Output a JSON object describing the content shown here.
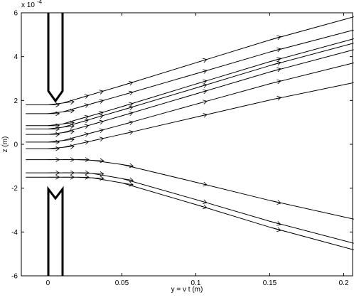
{
  "chart_data": {
    "type": "line",
    "x_label": "y = v t (m)",
    "y_label": "z (m)",
    "y_scale_label": {
      "base": "x 10",
      "power": "-4"
    },
    "x": [
      -0.015,
      0,
      0.01,
      0.02,
      0.03,
      0.05,
      0.1,
      0.15,
      0.206
    ],
    "xlim": [
      -0.018,
      0.206
    ],
    "ylim": [
      -6,
      6
    ],
    "xticks": [
      0,
      0.05,
      0.1,
      0.15,
      0.2
    ],
    "yticks": [
      -6,
      -4,
      -2,
      0,
      2,
      4,
      6
    ],
    "grid": false,
    "series": [
      {
        "color": "#000000",
        "values": [
          1.8,
          1.8,
          1.88,
          2.08,
          2.28,
          2.68,
          3.72,
          4.76,
          5.8
        ]
      },
      {
        "color": "#000000",
        "values": [
          1.4,
          1.4,
          1.48,
          1.67,
          1.86,
          2.24,
          3.22,
          4.21,
          5.2
        ]
      },
      {
        "color": "#000000",
        "values": [
          0.85,
          0.85,
          0.93,
          1.13,
          1.32,
          1.72,
          2.75,
          3.77,
          4.8
        ]
      },
      {
        "color": "#000000",
        "values": [
          0.7,
          0.7,
          0.78,
          0.97,
          1.17,
          1.56,
          2.57,
          3.59,
          4.6
        ]
      },
      {
        "color": "#000000",
        "values": [
          0.45,
          0.45,
          0.53,
          0.72,
          0.91,
          1.3,
          2.3,
          3.3,
          4.3
        ]
      },
      {
        "color": "#000000",
        "values": [
          0.1,
          0.1,
          0.17,
          0.35,
          0.53,
          0.89,
          1.83,
          2.76,
          3.7
        ]
      },
      {
        "color": "#000000",
        "values": [
          -0.2,
          -0.2,
          -0.14,
          0.01,
          0.16,
          0.46,
          1.24,
          2.02,
          2.8
        ]
      },
      {
        "color": "#000000",
        "values": [
          -0.7,
          -0.7,
          -0.7,
          -0.7,
          -0.73,
          -0.92,
          -1.73,
          -2.56,
          -3.4
        ]
      },
      {
        "color": "#000000",
        "values": [
          -1.3,
          -1.3,
          -1.3,
          -1.3,
          -1.33,
          -1.56,
          -2.52,
          -3.51,
          -4.5
        ]
      },
      {
        "color": "#000000",
        "values": [
          -1.5,
          -1.5,
          -1.5,
          -1.5,
          -1.53,
          -1.76,
          -2.75,
          -3.78,
          -4.8
        ]
      }
    ]
  }
}
